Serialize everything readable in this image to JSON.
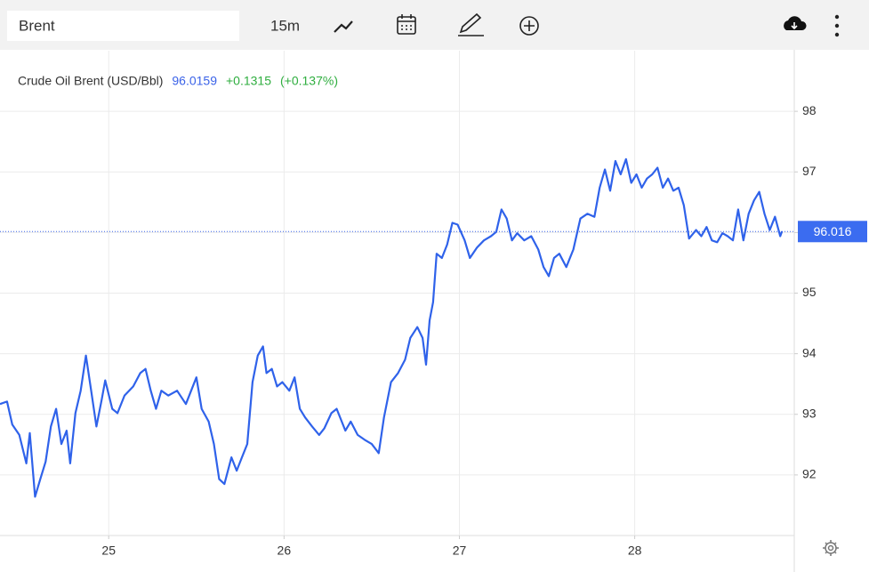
{
  "toolbar": {
    "search": "Brent",
    "interval": "15m"
  },
  "chart_data": {
    "type": "line",
    "series": [
      {
        "name": "Crude Oil Brent (USD/Bbl)",
        "color": "#2f62ea",
        "x": [
          24.38,
          24.42,
          24.45,
          24.49,
          24.53,
          24.55,
          24.58,
          24.61,
          24.64,
          24.67,
          24.7,
          24.73,
          24.76,
          24.78,
          24.81,
          24.84,
          24.87,
          24.9,
          24.93,
          24.96,
          24.98,
          25.02,
          25.05,
          25.09,
          25.14,
          25.18,
          25.21,
          25.24,
          25.27,
          25.3,
          25.34,
          25.39,
          25.44,
          25.47,
          25.5,
          25.53,
          25.57,
          25.6,
          25.63,
          25.66,
          25.7,
          25.73,
          25.76,
          25.79,
          25.82,
          25.85,
          25.88,
          25.9,
          25.93,
          25.96,
          25.99,
          26.03,
          26.06,
          26.09,
          26.12,
          26.16,
          26.2,
          26.23,
          26.27,
          26.3,
          26.35,
          26.38,
          26.42,
          26.46,
          26.5,
          26.54,
          26.57,
          26.61,
          26.65,
          26.69,
          26.72,
          26.76,
          26.79,
          26.81,
          26.83,
          26.85,
          26.87,
          26.9,
          26.93,
          26.96,
          26.99,
          27.03,
          27.06,
          27.1,
          27.14,
          27.18,
          27.21,
          27.24,
          27.27,
          27.3,
          27.33,
          27.37,
          27.41,
          27.45,
          27.48,
          27.51,
          27.54,
          27.57,
          27.61,
          27.65,
          27.69,
          27.73,
          27.77,
          27.8,
          27.83,
          27.86,
          27.89,
          27.92,
          27.95,
          27.98,
          28.01,
          28.04,
          28.07,
          28.1,
          28.13,
          28.16,
          28.19,
          28.22,
          28.25,
          28.28,
          28.31,
          28.35,
          28.38,
          28.41,
          28.44,
          28.47,
          28.5,
          28.53,
          28.56,
          28.59,
          28.62,
          28.65,
          28.68,
          28.71,
          28.74,
          28.77,
          28.8,
          28.83,
          28.84
        ],
        "values": [
          93.17,
          93.21,
          92.83,
          92.66,
          92.19,
          92.69,
          91.64,
          91.93,
          92.22,
          92.8,
          93.09,
          92.51,
          92.73,
          92.19,
          93.02,
          93.39,
          93.97,
          93.39,
          92.8,
          93.24,
          93.56,
          93.09,
          93.02,
          93.31,
          93.46,
          93.68,
          93.75,
          93.39,
          93.09,
          93.39,
          93.31,
          93.39,
          93.17,
          93.39,
          93.61,
          93.09,
          92.88,
          92.51,
          91.93,
          91.85,
          92.29,
          92.07,
          92.29,
          92.51,
          93.53,
          93.97,
          94.12,
          93.68,
          93.75,
          93.46,
          93.53,
          93.39,
          93.61,
          93.09,
          92.95,
          92.8,
          92.66,
          92.77,
          93.02,
          93.09,
          92.73,
          92.88,
          92.66,
          92.58,
          92.51,
          92.36,
          92.95,
          93.53,
          93.68,
          93.9,
          94.26,
          94.44,
          94.26,
          93.82,
          94.55,
          94.85,
          95.65,
          95.58,
          95.8,
          96.16,
          96.13,
          95.87,
          95.58,
          95.75,
          95.87,
          95.94,
          96.01,
          96.38,
          96.23,
          95.87,
          95.99,
          95.87,
          95.94,
          95.72,
          95.43,
          95.28,
          95.58,
          95.65,
          95.43,
          95.72,
          96.23,
          96.31,
          96.26,
          96.74,
          97.04,
          96.69,
          97.18,
          96.96,
          97.21,
          96.82,
          96.96,
          96.74,
          96.89,
          96.96,
          97.07,
          96.74,
          96.89,
          96.69,
          96.74,
          96.45,
          95.9,
          96.04,
          95.94,
          96.09,
          95.87,
          95.84,
          95.99,
          95.94,
          95.87,
          96.38,
          95.87,
          96.31,
          96.53,
          96.67,
          96.31,
          96.04,
          96.26,
          95.94,
          96.02
        ]
      }
    ],
    "last_price": {
      "value": 96.0159,
      "label": "96.016"
    },
    "change": "+0.1315",
    "change_pct": "(+0.137%)",
    "xlim": [
      24.38,
      28.91
    ],
    "xticks": [
      25,
      26,
      27,
      28
    ],
    "ylim": [
      91,
      99
    ],
    "yticks": [
      92,
      93,
      94,
      95,
      96,
      97,
      98
    ],
    "grid": true
  }
}
